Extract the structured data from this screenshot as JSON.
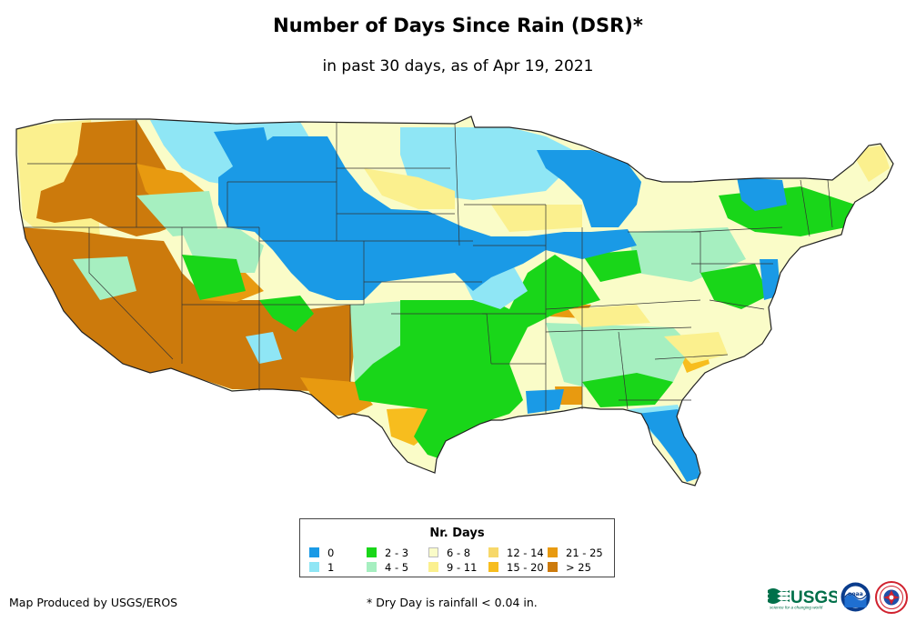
{
  "title": "Number of Days Since Rain (DSR)*",
  "subtitle": "in past 30 days, as of Apr 19, 2021",
  "legend": {
    "title": "Nr. Days",
    "items": [
      {
        "label": "0",
        "color": "#1a9ae6"
      },
      {
        "label": "1",
        "color": "#8fe6f5"
      },
      {
        "label": "2 - 3",
        "color": "#19d619"
      },
      {
        "label": "4 - 5",
        "color": "#a6efc0"
      },
      {
        "label": "6 - 8",
        "color": "#fafcc8"
      },
      {
        "label": "9 - 11",
        "color": "#fbf08e"
      },
      {
        "label": "12 - 14",
        "color": "#f7d86a"
      },
      {
        "label": "15 - 20",
        "color": "#f7bd1e"
      },
      {
        "label": "21 - 25",
        "color": "#e89a10"
      },
      {
        "label": "> 25",
        "color": "#cc7a0c"
      }
    ]
  },
  "credit": "Map Produced by USGS/EROS",
  "footnote": "* Dry Day is rainfall < 0.04 in.",
  "logos": {
    "usgs_text": "USGS",
    "usgs_tagline": "science for a changing world",
    "noaa_text": "noaa"
  }
}
